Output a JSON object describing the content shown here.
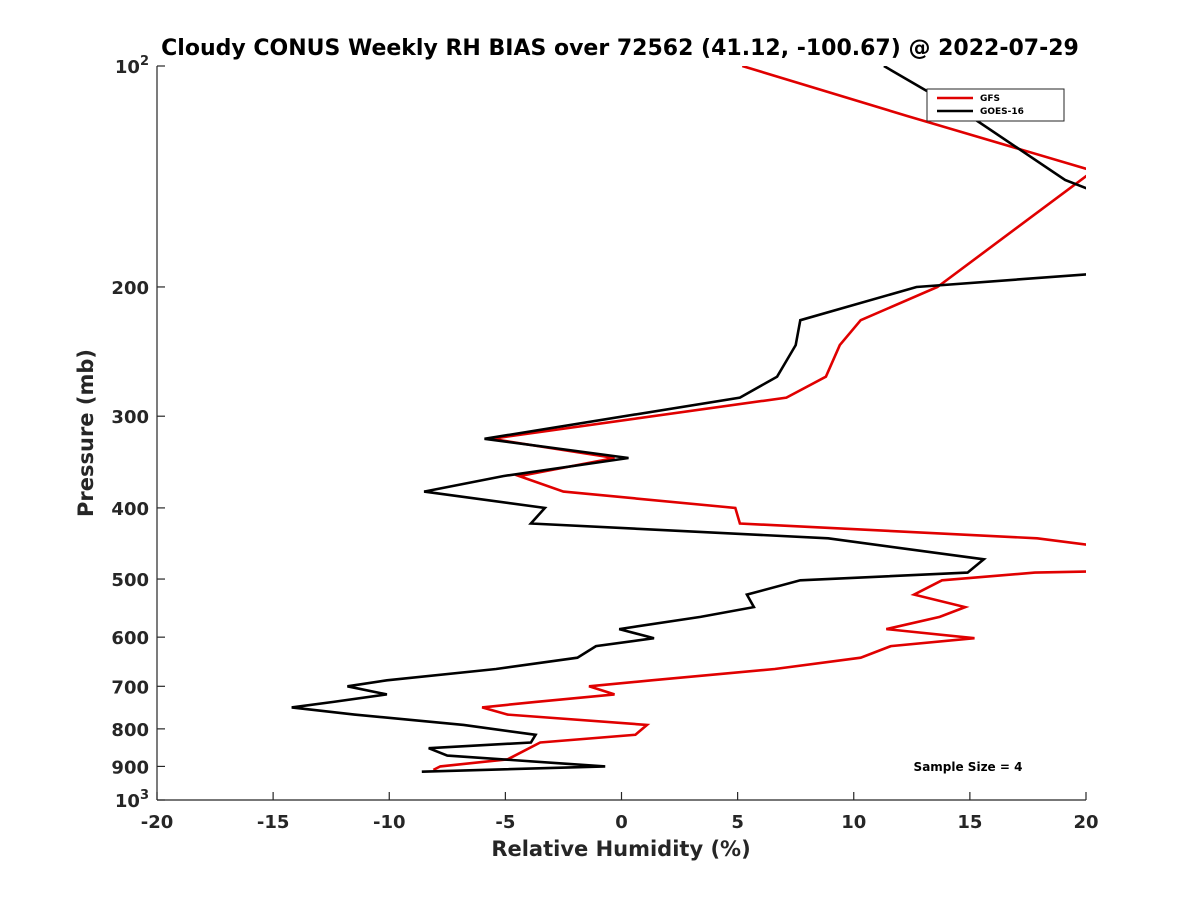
{
  "chart_data": {
    "type": "line",
    "title": "Cloudy CONUS Weekly RH BIAS over 72562 (41.12, -100.67) @ 2022-07-29",
    "xlabel": "Relative Humidity (%)",
    "ylabel": "Pressure (mb)",
    "xlim": [
      -20,
      20
    ],
    "ylim": [
      100,
      1000
    ],
    "y_scale": "log",
    "y_reversed": true,
    "x_ticks": [
      "-20",
      "-15",
      "-10",
      "-5",
      "0",
      "5",
      "10",
      "15",
      "20"
    ],
    "y_ticks": [
      {
        "value": 100,
        "base": "10",
        "exp": "2"
      },
      {
        "value": 200,
        "label": "200"
      },
      {
        "value": 300,
        "label": "300"
      },
      {
        "value": 400,
        "label": "400"
      },
      {
        "value": 500,
        "label": "500"
      },
      {
        "value": 600,
        "label": "600"
      },
      {
        "value": 700,
        "label": "700"
      },
      {
        "value": 800,
        "label": "800"
      },
      {
        "value": 900,
        "label": "900"
      },
      {
        "value": 1000,
        "base": "10",
        "exp": "3"
      }
    ],
    "grid": false,
    "legend_position": "top-right",
    "annotation": "Sample Size = 4",
    "series": [
      {
        "name": "GFS",
        "color": "#e00000",
        "points": [
          [
            5.2,
            100
          ],
          [
            12.3,
            117
          ],
          [
            20,
            138
          ],
          [
            20.3,
            139
          ],
          [
            13.6,
            200
          ],
          [
            10.3,
            222
          ],
          [
            9.4,
            240
          ],
          [
            8.8,
            265
          ],
          [
            7.1,
            283
          ],
          [
            -5.6,
            322
          ],
          [
            -0.3,
            342
          ],
          [
            -4.4,
            362
          ],
          [
            -2.5,
            380
          ],
          [
            4.9,
            400
          ],
          [
            5.1,
            420
          ],
          [
            17.9,
            440
          ],
          [
            20.3,
            450
          ],
          [
            20.5,
            488
          ],
          [
            17.8,
            490
          ],
          [
            13.8,
            502
          ],
          [
            12.6,
            525
          ],
          [
            14.8,
            546
          ],
          [
            13.7,
            563
          ],
          [
            11.4,
            585
          ],
          [
            15.2,
            602
          ],
          [
            11.6,
            617
          ],
          [
            10.3,
            640
          ],
          [
            6.6,
            663
          ],
          [
            1.3,
            687
          ],
          [
            -1.4,
            700
          ],
          [
            -0.3,
            718
          ],
          [
            -3.7,
            735
          ],
          [
            -6.0,
            748
          ],
          [
            -4.9,
            765
          ],
          [
            1.1,
            790
          ],
          [
            0.6,
            815
          ],
          [
            -3.5,
            835
          ],
          [
            -4.9,
            880
          ],
          [
            -7.8,
            900
          ],
          [
            -8.1,
            910
          ]
        ]
      },
      {
        "name": "GOES-16",
        "color": "#000000",
        "points": [
          [
            11.3,
            100
          ],
          [
            15.0,
            117
          ],
          [
            19.1,
            143
          ],
          [
            20.8,
            150
          ],
          [
            20.3,
            192
          ],
          [
            12.7,
            200
          ],
          [
            7.7,
            222
          ],
          [
            7.5,
            240
          ],
          [
            6.7,
            265
          ],
          [
            5.1,
            283
          ],
          [
            -5.9,
            322
          ],
          [
            0.3,
            342
          ],
          [
            -5.1,
            362
          ],
          [
            -8.5,
            380
          ],
          [
            -3.3,
            400
          ],
          [
            -3.9,
            420
          ],
          [
            8.9,
            440
          ],
          [
            15.6,
            470
          ],
          [
            14.9,
            490
          ],
          [
            7.7,
            502
          ],
          [
            5.4,
            525
          ],
          [
            5.7,
            546
          ],
          [
            3.4,
            563
          ],
          [
            -0.1,
            585
          ],
          [
            1.4,
            602
          ],
          [
            -1.1,
            617
          ],
          [
            -1.9,
            640
          ],
          [
            -5.4,
            663
          ],
          [
            -10.1,
            687
          ],
          [
            -11.8,
            700
          ],
          [
            -10.1,
            718
          ],
          [
            -12.4,
            735
          ],
          [
            -14.2,
            748
          ],
          [
            -11.5,
            765
          ],
          [
            -6.8,
            790
          ],
          [
            -3.7,
            815
          ],
          [
            -3.9,
            835
          ],
          [
            -8.3,
            850
          ],
          [
            -7.5,
            870
          ],
          [
            -0.7,
            900
          ],
          [
            -8.6,
            915
          ]
        ]
      }
    ]
  }
}
